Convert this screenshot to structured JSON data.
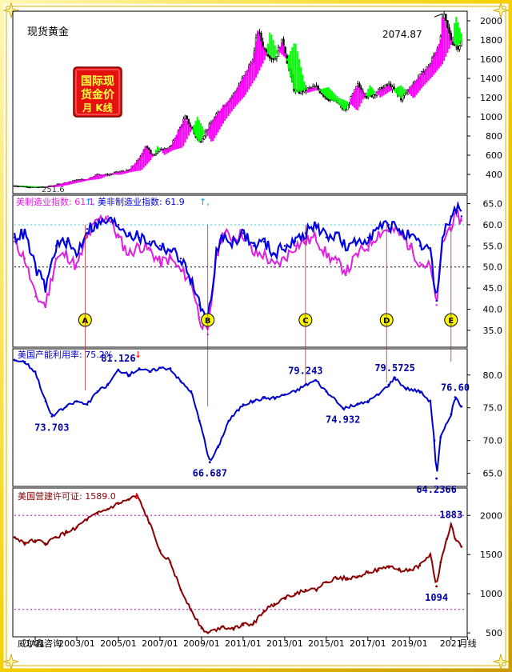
{
  "chart_data": [
    {
      "type": "line",
      "title": "现货黄金",
      "badge": "国际现货金价月 K线",
      "peak_label": "2074.87",
      "low_label": "251.6",
      "ylim": [
        200,
        2100
      ],
      "yticks": [
        400,
        600,
        800,
        1000,
        1200,
        1400,
        1600,
        1800,
        2000
      ],
      "series": [
        {
          "x": [
            2000.0,
            2000.5,
            2001.0,
            2001.5,
            2002.0,
            2002.5,
            2003.0,
            2003.5,
            2004.0,
            2004.5,
            2005.0,
            2005.5,
            2006.0,
            2006.3,
            2006.6,
            2007.0,
            2007.5,
            2008.0,
            2008.2,
            2008.7,
            2008.9,
            2009.5,
            2010.0,
            2010.5,
            2011.0,
            2011.5,
            2011.7,
            2012.0,
            2012.5,
            2012.9,
            2013.3,
            2013.5,
            2014.0,
            2014.5,
            2015.0,
            2015.5,
            2015.9,
            2016.5,
            2017.0,
            2017.5,
            2018.0,
            2018.6,
            2019.0,
            2019.5,
            2020.0,
            2020.5,
            2020.6,
            2021.0,
            2021.3,
            2021.5
          ],
          "values": [
            282,
            275,
            265,
            270,
            290,
            315,
            340,
            350,
            400,
            395,
            425,
            440,
            560,
            700,
            600,
            650,
            680,
            900,
            1000,
            800,
            730,
            950,
            1100,
            1220,
            1400,
            1620,
            1900,
            1700,
            1600,
            1790,
            1400,
            1250,
            1280,
            1310,
            1200,
            1150,
            1060,
            1330,
            1200,
            1270,
            1330,
            1190,
            1300,
            1420,
            1550,
            1800,
            2074,
            1800,
            1730,
            1780
          ]
        }
      ]
    },
    {
      "type": "line",
      "title": "美制造业指数",
      "ylim": [
        31,
        67
      ],
      "yticks": [
        35.0,
        40.0,
        45.0,
        50.0,
        55.0,
        60.0,
        65.0
      ],
      "legend": [
        {
          "name": "美制造业指数",
          "value_text": "61.1",
          "color": "#e020e0"
        },
        {
          "name": "美非制造业指数",
          "value_text": "61.9",
          "color": "#0000e0"
        }
      ],
      "event_labels": [
        "A",
        "B",
        "C",
        "D",
        "E"
      ],
      "event_x": [
        2003.4,
        2009.3,
        2014.0,
        2017.9,
        2021.0
      ],
      "series": [
        {
          "name": "美制造业指数",
          "x": [
            2000.0,
            2000.5,
            2001.0,
            2001.5,
            2002.0,
            2002.5,
            2003.0,
            2003.5,
            2004.0,
            2004.5,
            2005.0,
            2005.5,
            2006.0,
            2006.5,
            2007.0,
            2007.5,
            2008.0,
            2008.5,
            2008.9,
            2009.3,
            2009.7,
            2010.0,
            2010.5,
            2011.0,
            2011.5,
            2012.0,
            2012.5,
            2013.0,
            2013.5,
            2014.0,
            2014.5,
            2015.0,
            2015.5,
            2016.0,
            2016.5,
            2017.0,
            2017.5,
            2018.0,
            2018.5,
            2019.0,
            2019.5,
            2020.0,
            2020.3,
            2020.6,
            2021.0,
            2021.3,
            2021.5
          ],
          "values": [
            56,
            52,
            43,
            41,
            52,
            53,
            50,
            57,
            61,
            62,
            57,
            53,
            55,
            54,
            51,
            52,
            49,
            47,
            38,
            34,
            52,
            58,
            57,
            58,
            53,
            53,
            50,
            52,
            55,
            56,
            57,
            53,
            51,
            49,
            53,
            55,
            58,
            59,
            58,
            55,
            51,
            50,
            41,
            56,
            60,
            62,
            61
          ]
        },
        {
          "name": "美非制造业指数",
          "x": [
            2000.0,
            2000.5,
            2001.0,
            2001.5,
            2002.0,
            2002.5,
            2003.0,
            2003.5,
            2004.0,
            2004.5,
            2005.0,
            2005.5,
            2006.0,
            2006.5,
            2007.0,
            2007.5,
            2008.0,
            2008.5,
            2008.9,
            2009.3,
            2009.7,
            2010.0,
            2010.5,
            2011.0,
            2011.5,
            2012.0,
            2012.5,
            2013.0,
            2013.5,
            2014.0,
            2014.5,
            2015.0,
            2015.5,
            2016.0,
            2016.5,
            2017.0,
            2017.5,
            2018.0,
            2018.5,
            2019.0,
            2019.5,
            2020.0,
            2020.3,
            2020.6,
            2021.0,
            2021.3,
            2021.5
          ],
          "values": [
            57,
            58,
            50,
            45,
            55,
            56,
            53,
            59,
            60,
            61,
            60,
            58,
            57,
            56,
            55,
            54,
            52,
            47,
            41,
            37,
            53,
            57,
            56,
            58,
            55,
            56,
            53,
            55,
            56,
            58,
            60,
            57,
            58,
            54,
            56,
            57,
            59,
            60,
            59,
            57,
            55,
            54,
            42,
            57,
            62,
            64,
            62
          ]
        }
      ]
    },
    {
      "type": "line",
      "title": "美国产能利用率",
      "legend": [
        {
          "name": "美国产能利用率",
          "value_text": "75.2%",
          "color": "#0000cc"
        }
      ],
      "ylim": [
        63,
        84
      ],
      "yticks": [
        65.0,
        70.0,
        75.0,
        80.0
      ],
      "annotations": [
        {
          "label": "73.703",
          "x": 2001.8,
          "y": 73.7
        },
        {
          "label": "81.126",
          "x": 2005.0,
          "y": 81.1
        },
        {
          "label": "66.687",
          "x": 2009.4,
          "y": 66.7
        },
        {
          "label": "79.243",
          "x": 2014.0,
          "y": 79.2
        },
        {
          "label": "74.932",
          "x": 2015.8,
          "y": 74.9
        },
        {
          "label": "79.5725",
          "x": 2018.3,
          "y": 79.6
        },
        {
          "label": "64.2366",
          "x": 2020.3,
          "y": 64.2
        },
        {
          "label": "76.60",
          "x": 2021.2,
          "y": 76.6
        }
      ],
      "series": [
        {
          "name": "美国产能利用率",
          "x": [
            2000.0,
            2000.5,
            2001.0,
            2001.5,
            2001.8,
            2002.5,
            2003.0,
            2003.5,
            2004.0,
            2004.5,
            2005.0,
            2005.5,
            2006.0,
            2006.5,
            2007.0,
            2007.5,
            2008.0,
            2008.5,
            2008.9,
            2009.4,
            2009.8,
            2010.3,
            2011.0,
            2011.5,
            2012.0,
            2012.5,
            2013.0,
            2013.5,
            2014.0,
            2014.5,
            2015.0,
            2015.8,
            2016.5,
            2017.0,
            2017.5,
            2018.0,
            2018.3,
            2018.8,
            2019.5,
            2020.0,
            2020.2,
            2020.3,
            2020.5,
            2021.0,
            2021.2,
            2021.5
          ],
          "values": [
            82.3,
            82.0,
            80.5,
            76.0,
            73.7,
            75.2,
            76.0,
            75.5,
            77.5,
            78.5,
            80.8,
            80.0,
            81.0,
            80.5,
            81.1,
            81.0,
            79.0,
            77.5,
            73.0,
            66.7,
            69.0,
            73.0,
            75.5,
            76.0,
            76.5,
            76.5,
            77.0,
            77.5,
            78.5,
            79.2,
            77.5,
            74.9,
            75.5,
            76.0,
            77.0,
            78.5,
            79.6,
            78.0,
            77.5,
            76.0,
            70.0,
            64.2,
            70.5,
            74.0,
            76.6,
            75.2
          ]
        }
      ]
    },
    {
      "type": "line",
      "title": "美国营建许可证",
      "legend": [
        {
          "name": "美国营建许可证",
          "value_text": "1589.0",
          "color": "#8b0000"
        }
      ],
      "ylim": [
        450,
        2350
      ],
      "yticks": [
        500,
        1000,
        1500,
        2000
      ],
      "annotations": [
        {
          "label": "1883",
          "x": 2021.0,
          "y": 1883
        },
        {
          "label": "1094",
          "x": 2020.3,
          "y": 1094
        }
      ],
      "series": [
        {
          "name": "美国营建许可证",
          "x": [
            2000.0,
            2000.5,
            2001.0,
            2001.5,
            2002.0,
            2002.5,
            2003.0,
            2003.5,
            2004.0,
            2004.5,
            2005.0,
            2005.5,
            2005.9,
            2006.5,
            2007.0,
            2007.5,
            2008.0,
            2008.5,
            2009.0,
            2009.3,
            2010.0,
            2010.5,
            2011.0,
            2011.5,
            2012.0,
            2012.5,
            2013.0,
            2013.5,
            2014.0,
            2014.5,
            2015.0,
            2015.5,
            2016.0,
            2016.5,
            2017.0,
            2017.5,
            2018.0,
            2018.5,
            2019.0,
            2019.5,
            2020.0,
            2020.3,
            2020.5,
            2020.8,
            2021.0,
            2021.2,
            2021.5
          ],
          "values": [
            1720,
            1650,
            1680,
            1640,
            1720,
            1780,
            1850,
            1950,
            2020,
            2080,
            2150,
            2200,
            2250,
            1900,
            1550,
            1400,
            1050,
            800,
            560,
            500,
            580,
            560,
            600,
            620,
            780,
            870,
            950,
            1000,
            1050,
            1050,
            1150,
            1200,
            1200,
            1220,
            1280,
            1300,
            1350,
            1300,
            1300,
            1360,
            1500,
            1094,
            1400,
            1700,
            1883,
            1700,
            1600
          ]
        }
      ]
    }
  ],
  "x_axis": {
    "labels": [
      "1/01",
      "2003/01",
      "2005/01",
      "2007/01",
      "2009/01",
      "2011/01",
      "2013/01",
      "2015/01",
      "2017/01",
      "2019/01",
      "2021",
      "月线"
    ],
    "label_x": [
      2001.0,
      2003.0,
      2005.0,
      2007.0,
      2009.0,
      2011.0,
      2013.0,
      2015.0,
      2017.0,
      2019.0,
      2021.0,
      2021.8
    ]
  },
  "footer": {
    "brand": "威尔鑫咨询"
  },
  "colors": {
    "up": "#000000",
    "down": "#000000",
    "ma_up": "#ff00ff",
    "ma_down": "#00ff00",
    "frame": "#f5d000"
  }
}
